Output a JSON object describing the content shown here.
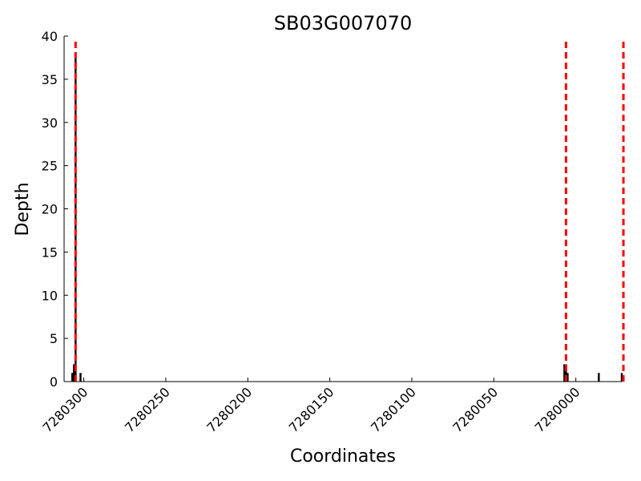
{
  "chart_data": {
    "type": "bar",
    "title": "SB03G007070",
    "xlabel": "Coordinates",
    "ylabel": "Depth",
    "xlim": [
      7280312,
      7279972
    ],
    "ylim": [
      0,
      40
    ],
    "x_reversed": true,
    "x_ticks": [
      7280300,
      7280250,
      7280200,
      7280150,
      7280100,
      7280050,
      7280000
    ],
    "y_ticks": [
      0,
      5,
      10,
      15,
      20,
      25,
      30,
      35,
      40
    ],
    "grid": false,
    "bar_color": "#000000",
    "marker_color": "#ff0000",
    "bars": [
      {
        "x": 7280307,
        "depth": 1
      },
      {
        "x": 7280306,
        "depth": 2
      },
      {
        "x": 7280305,
        "depth": 38
      },
      {
        "x": 7280302,
        "depth": 1
      },
      {
        "x": 7280007,
        "depth": 2
      },
      {
        "x": 7280006,
        "depth": 2
      },
      {
        "x": 7280005,
        "depth": 1
      },
      {
        "x": 7279986,
        "depth": 1
      },
      {
        "x": 7279972,
        "depth": 1
      }
    ],
    "markers": [
      7280305,
      7280006,
      7279971
    ]
  }
}
